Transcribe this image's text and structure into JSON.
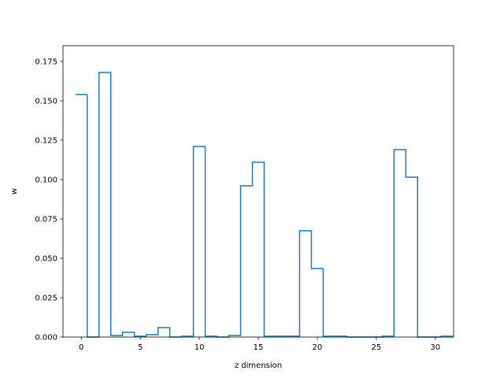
{
  "chart_data": {
    "type": "line",
    "style": "step",
    "title": "",
    "xlabel": "z dimension",
    "ylabel": "w",
    "xlim": [
      -1.55,
      31.55
    ],
    "ylim": [
      0,
      0.185
    ],
    "grid": false,
    "x": [
      0,
      1,
      2,
      3,
      4,
      5,
      6,
      7,
      8,
      9,
      10,
      11,
      12,
      13,
      14,
      15,
      16,
      17,
      18,
      19,
      20,
      21,
      22,
      23,
      24,
      25,
      26,
      27,
      28,
      29,
      30,
      31
    ],
    "series": [
      {
        "values": [
          0.154,
          0.0,
          0.168,
          0.001,
          0.003,
          0.0005,
          0.0015,
          0.006,
          0.0,
          0.0005,
          0.121,
          0.0005,
          0.0,
          0.001,
          0.096,
          0.111,
          0.0005,
          0.0005,
          0.0005,
          0.0675,
          0.0435,
          0.0005,
          0.0005,
          0.0,
          0.0,
          0.0,
          0.0005,
          0.119,
          0.1015,
          0.0,
          0.0,
          0.0005
        ],
        "color": "#1f77b4"
      }
    ],
    "xticks": [
      0,
      5,
      10,
      15,
      20,
      25,
      30
    ],
    "xtick_labels": [
      "0",
      "5",
      "10",
      "15",
      "20",
      "25",
      "30"
    ],
    "yticks": [
      0.0,
      0.025,
      0.05,
      0.075,
      0.1,
      0.125,
      0.15,
      0.175
    ],
    "ytick_labels": [
      "0.000",
      "0.025",
      "0.050",
      "0.075",
      "0.100",
      "0.125",
      "0.150",
      "0.175"
    ]
  }
}
